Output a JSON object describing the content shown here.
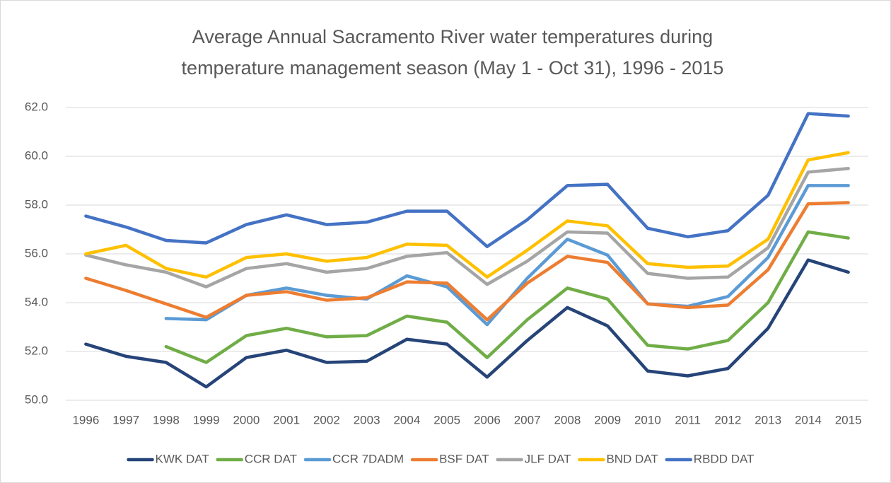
{
  "chart_data": {
    "type": "line",
    "title": [
      "Average Annual Sacramento River water temperatures during",
      "temperature management season (May 1 - Oct 31), 1996 - 2015"
    ],
    "categories": [
      "1996",
      "1997",
      "1998",
      "1999",
      "2000",
      "2001",
      "2002",
      "2003",
      "2004",
      "2005",
      "2006",
      "2007",
      "2008",
      "2009",
      "2010",
      "2011",
      "2012",
      "2013",
      "2014",
      "2015"
    ],
    "ylim": [
      50,
      62
    ],
    "yticks": [
      {
        "value": 50,
        "label": "50.0"
      },
      {
        "value": 52,
        "label": "52.0"
      },
      {
        "value": 54,
        "label": "54.0"
      },
      {
        "value": 56,
        "label": "56.0"
      },
      {
        "value": 58,
        "label": "58.0"
      },
      {
        "value": 60,
        "label": "60.0"
      },
      {
        "value": 62,
        "label": "62.0"
      }
    ],
    "grid": true,
    "legend": "bottom",
    "series": [
      {
        "name": "KWK DAT",
        "color": "#264478",
        "values": [
          52.3,
          51.8,
          51.55,
          50.55,
          51.75,
          52.05,
          51.55,
          51.6,
          52.5,
          52.3,
          50.95,
          52.45,
          53.8,
          53.05,
          51.2,
          51.0,
          51.3,
          52.95,
          55.75,
          55.25
        ]
      },
      {
        "name": "CCR DAT",
        "color": "#70ad47",
        "values": [
          null,
          null,
          52.2,
          51.55,
          52.65,
          52.95,
          52.6,
          52.65,
          53.45,
          53.2,
          51.75,
          53.3,
          54.6,
          54.15,
          52.25,
          52.1,
          52.45,
          54.0,
          56.9,
          56.65
        ]
      },
      {
        "name": "CCR 7DADM",
        "color": "#5b9bd5",
        "values": [
          null,
          null,
          53.35,
          53.3,
          54.3,
          54.6,
          54.3,
          54.15,
          55.1,
          54.65,
          53.1,
          55.0,
          56.6,
          55.95,
          53.95,
          53.85,
          54.25,
          55.85,
          58.8,
          58.8
        ]
      },
      {
        "name": "BSF DAT",
        "color": "#ed7d31",
        "values": [
          55.0,
          54.5,
          53.95,
          53.4,
          54.3,
          54.45,
          54.1,
          54.2,
          54.85,
          54.8,
          53.3,
          54.8,
          55.9,
          55.65,
          53.95,
          53.8,
          53.9,
          55.35,
          58.05,
          58.1
        ]
      },
      {
        "name": "JLF DAT",
        "color": "#a5a5a5",
        "values": [
          55.95,
          55.55,
          55.25,
          54.65,
          55.4,
          55.6,
          55.25,
          55.4,
          55.9,
          56.05,
          54.75,
          55.7,
          56.9,
          56.85,
          55.2,
          55.0,
          55.05,
          56.25,
          59.35,
          59.5
        ]
      },
      {
        "name": "BND DAT",
        "color": "#ffc000",
        "values": [
          56.0,
          56.35,
          55.4,
          55.05,
          55.85,
          56.0,
          55.7,
          55.85,
          56.4,
          56.35,
          55.05,
          56.15,
          57.35,
          57.15,
          55.6,
          55.45,
          55.5,
          56.6,
          59.85,
          60.15
        ]
      },
      {
        "name": "RBDD DAT",
        "color": "#4472c4",
        "values": [
          57.55,
          57.1,
          56.55,
          56.45,
          57.2,
          57.6,
          57.2,
          57.3,
          57.75,
          57.75,
          56.3,
          57.4,
          58.8,
          58.85,
          57.05,
          56.7,
          56.95,
          58.4,
          61.75,
          61.65
        ]
      }
    ]
  }
}
